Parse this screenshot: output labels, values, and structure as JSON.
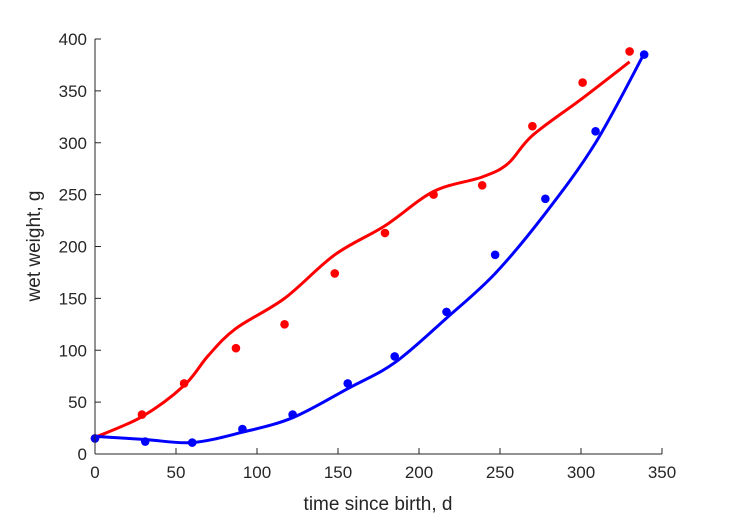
{
  "chart_data": {
    "type": "scatter",
    "title": "",
    "xlabel": "time since birth, d",
    "ylabel": "wet weight, g",
    "xlim": [
      0,
      350
    ],
    "ylim": [
      0,
      400
    ],
    "xticks": [
      0,
      50,
      100,
      150,
      200,
      250,
      300,
      350
    ],
    "yticks": [
      0,
      50,
      100,
      150,
      200,
      250,
      300,
      350,
      400
    ],
    "grid": false,
    "series": [
      {
        "color": "#ff0000",
        "points": [
          [
            0,
            15
          ],
          [
            29,
            38
          ],
          [
            55,
            68
          ],
          [
            87,
            102
          ],
          [
            117,
            125
          ],
          [
            148,
            174
          ],
          [
            179,
            213
          ],
          [
            209,
            250
          ],
          [
            239,
            259
          ],
          [
            270,
            316
          ],
          [
            301,
            358
          ],
          [
            330,
            388
          ]
        ],
        "fit": [
          [
            0,
            16
          ],
          [
            29,
            36
          ],
          [
            55,
            66
          ],
          [
            70,
            95
          ],
          [
            87,
            121
          ],
          [
            117,
            150
          ],
          [
            148,
            192
          ],
          [
            179,
            220
          ],
          [
            209,
            253
          ],
          [
            239,
            267
          ],
          [
            255,
            280
          ],
          [
            270,
            307
          ],
          [
            301,
            343
          ],
          [
            330,
            378
          ]
        ]
      },
      {
        "color": "#0000ff",
        "points": [
          [
            0,
            15
          ],
          [
            31,
            12
          ],
          [
            60,
            11
          ],
          [
            91,
            24
          ],
          [
            122,
            38
          ],
          [
            156,
            68
          ],
          [
            185,
            94
          ],
          [
            217,
            137
          ],
          [
            247,
            192
          ],
          [
            278,
            246
          ],
          [
            309,
            311
          ],
          [
            339,
            385
          ]
        ],
        "fit": [
          [
            0,
            17
          ],
          [
            31,
            14
          ],
          [
            60,
            11
          ],
          [
            91,
            21
          ],
          [
            122,
            35
          ],
          [
            156,
            63
          ],
          [
            185,
            88
          ],
          [
            217,
            131
          ],
          [
            247,
            174
          ],
          [
            278,
            232
          ],
          [
            309,
            300
          ],
          [
            339,
            386
          ]
        ]
      }
    ]
  }
}
